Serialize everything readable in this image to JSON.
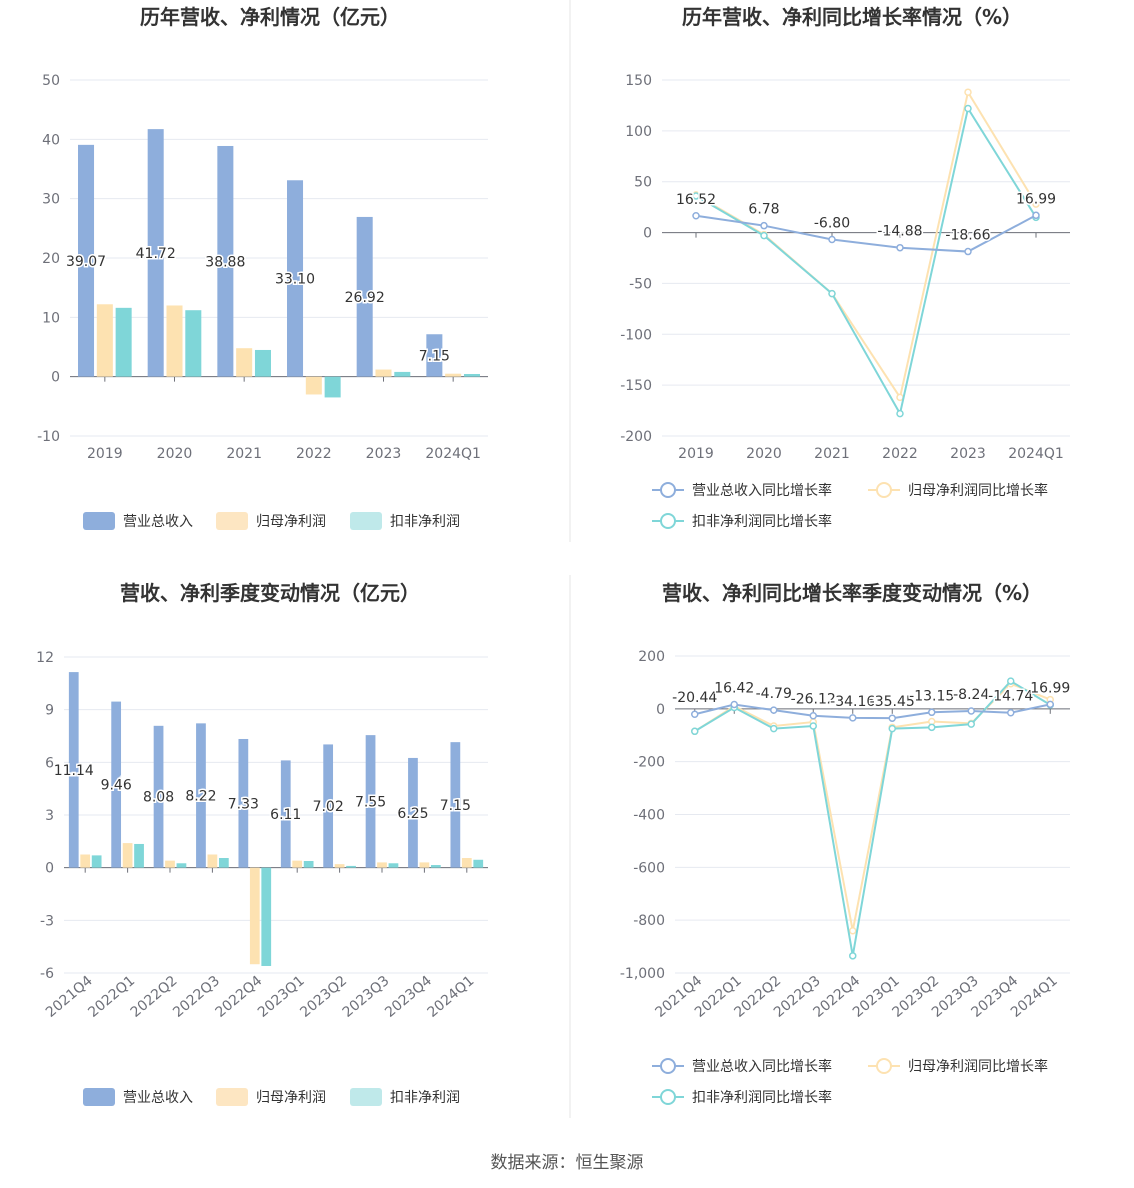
{
  "footer": {
    "source": "数据来源：恒生聚源"
  },
  "colors": {
    "revenue": "#8eaedc",
    "parent_profit": "#fde2b1",
    "deducted_profit": "#7fd6d8"
  },
  "chart_data": [
    {
      "type": "bar",
      "title": "历年营收、净利情况（亿元）",
      "categories": [
        "2019",
        "2020",
        "2021",
        "2022",
        "2023",
        "2024Q1"
      ],
      "ylim": [
        -10,
        50
      ],
      "yticks": [
        -10,
        0,
        10,
        20,
        30,
        40,
        50
      ],
      "legend": "bottom",
      "series": [
        {
          "name": "营业总收入",
          "values": [
            39.07,
            41.72,
            38.88,
            33.1,
            26.92,
            7.15
          ],
          "labels": [
            "39.07",
            "41.72",
            "38.88",
            "33.10",
            "26.92",
            "7.15"
          ]
        },
        {
          "name": "归母净利润",
          "values": [
            12.2,
            12.0,
            4.8,
            -3.0,
            1.2,
            0.5
          ]
        },
        {
          "name": "扣非净利润",
          "values": [
            11.6,
            11.2,
            4.5,
            -3.5,
            0.8,
            0.45
          ]
        }
      ]
    },
    {
      "type": "line",
      "title": "历年营收、净利同比增长率情况（%）",
      "categories": [
        "2019",
        "2020",
        "2021",
        "2022",
        "2023",
        "2024Q1"
      ],
      "ylim": [
        -200,
        150
      ],
      "yticks": [
        -200,
        -150,
        -100,
        -50,
        0,
        50,
        100,
        150
      ],
      "legend": "bottom",
      "series": [
        {
          "name": "营业总收入同比增长率",
          "values": [
            16.52,
            6.78,
            -6.8,
            -14.88,
            -18.66,
            16.99
          ],
          "labels": [
            "16.52",
            "6.78",
            "-6.80",
            "-14.88",
            "-18.66",
            "16.99"
          ]
        },
        {
          "name": "归母净利润同比增长率",
          "values": [
            37,
            -2,
            -60,
            -162,
            138,
            28
          ]
        },
        {
          "name": "扣非净利润同比增长率",
          "values": [
            36,
            -3,
            -60,
            -178,
            122,
            15
          ]
        }
      ]
    },
    {
      "type": "bar",
      "title": "营收、净利季度变动情况（亿元）",
      "categories": [
        "2021Q4",
        "2022Q1",
        "2022Q2",
        "2022Q3",
        "2022Q4",
        "2023Q1",
        "2023Q2",
        "2023Q3",
        "2023Q4",
        "2024Q1"
      ],
      "ylim": [
        -6,
        12
      ],
      "yticks": [
        -6,
        -3,
        0,
        3,
        6,
        9,
        12
      ],
      "legend": "bottom",
      "series": [
        {
          "name": "营业总收入",
          "values": [
            11.14,
            9.46,
            8.08,
            8.22,
            7.33,
            6.11,
            7.02,
            7.55,
            6.25,
            7.15
          ],
          "labels": [
            "11.14",
            "9.46",
            "8.08",
            "8.22",
            "7.33",
            "6.11",
            "7.02",
            "7.55",
            "6.25",
            "7.15"
          ]
        },
        {
          "name": "归母净利润",
          "values": [
            0.75,
            1.4,
            0.4,
            0.75,
            -5.5,
            0.4,
            0.2,
            0.3,
            0.3,
            0.55
          ]
        },
        {
          "name": "扣非净利润",
          "values": [
            0.7,
            1.35,
            0.25,
            0.55,
            -5.6,
            0.38,
            0.1,
            0.25,
            0.15,
            0.45
          ]
        }
      ]
    },
    {
      "type": "line",
      "title": "营收、净利同比增长率季度变动情况（%）",
      "categories": [
        "2021Q4",
        "2022Q1",
        "2022Q2",
        "2022Q3",
        "2022Q4",
        "2023Q1",
        "2023Q2",
        "2023Q3",
        "2023Q4",
        "2024Q1"
      ],
      "ylim": [
        -1000,
        200
      ],
      "yticks": [
        -1000,
        -800,
        -600,
        -400,
        -200,
        0,
        200
      ],
      "ytick_labels": [
        "-1,000",
        "-800",
        "-600",
        "-400",
        "-200",
        "0",
        "200"
      ],
      "legend": "bottom",
      "series": [
        {
          "name": "营业总收入同比增长率",
          "values": [
            -20.44,
            16.42,
            -4.79,
            -26.12,
            -34.16,
            -35.45,
            -13.15,
            -8.24,
            -14.74,
            16.99
          ],
          "labels": [
            "-20.44",
            "16.42",
            "-4.79",
            "-26.12",
            "-34.16",
            "-35.45",
            "-13.15",
            "-8.24",
            "-14.74",
            "16.99"
          ]
        },
        {
          "name": "归母净利润同比增长率",
          "values": [
            -85,
            10,
            -65,
            -50,
            -840,
            -70,
            -48,
            -55,
            95,
            35
          ]
        },
        {
          "name": "扣非净利润同比增长率",
          "values": [
            -85,
            5,
            -75,
            -65,
            -935,
            -75,
            -70,
            -58,
            105,
            15
          ]
        }
      ]
    }
  ]
}
